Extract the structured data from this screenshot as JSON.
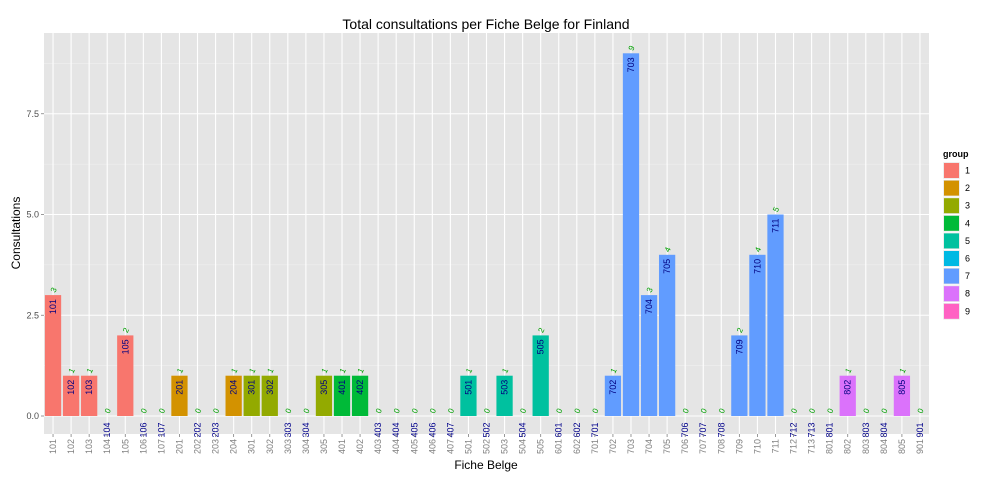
{
  "chart_data": {
    "type": "bar",
    "title": "Total consultations per Fiche Belge for Finland",
    "xlabel": "Fiche Belge",
    "ylabel": "Consultations",
    "ylim": [
      0,
      9.5
    ],
    "yticks": [
      0.0,
      2.5,
      5.0,
      7.5
    ],
    "ytick_labels": [
      "0.0",
      "2.5",
      "5.0",
      "7.5"
    ],
    "grid": true,
    "legend": {
      "title": "group",
      "placement": "right",
      "entries": [
        {
          "label": "1",
          "color": "#F8766D"
        },
        {
          "label": "2",
          "color": "#D39200"
        },
        {
          "label": "3",
          "color": "#93AA00"
        },
        {
          "label": "4",
          "color": "#00BA38"
        },
        {
          "label": "5",
          "color": "#00C19F"
        },
        {
          "label": "6",
          "color": "#00B9E3"
        },
        {
          "label": "7",
          "color": "#619CFF"
        },
        {
          "label": "8",
          "color": "#DB72FB"
        },
        {
          "label": "9",
          "color": "#FF61C3"
        }
      ]
    },
    "categories": [
      "101",
      "102",
      "103",
      "104",
      "105",
      "106",
      "107",
      "201",
      "202",
      "203",
      "204",
      "301",
      "302",
      "303",
      "304",
      "305",
      "401",
      "402",
      "403",
      "404",
      "405",
      "406",
      "407",
      "501",
      "502",
      "503",
      "504",
      "505",
      "601",
      "602",
      "701",
      "702",
      "703",
      "704",
      "705",
      "706",
      "707",
      "708",
      "709",
      "710",
      "711",
      "712",
      "713",
      "801",
      "802",
      "803",
      "804",
      "805",
      "901"
    ],
    "values": [
      3,
      1,
      1,
      0,
      2,
      0,
      0,
      1,
      0,
      0,
      1,
      1,
      1,
      0,
      0,
      1,
      1,
      1,
      0,
      0,
      0,
      0,
      0,
      1,
      0,
      1,
      0,
      2,
      0,
      0,
      0,
      1,
      9,
      3,
      4,
      0,
      0,
      0,
      2,
      4,
      5,
      0,
      0,
      0,
      1,
      0,
      0,
      1,
      0
    ],
    "groups": [
      1,
      1,
      1,
      1,
      1,
      1,
      1,
      2,
      2,
      2,
      2,
      3,
      3,
      3,
      3,
      3,
      4,
      4,
      4,
      4,
      4,
      4,
      4,
      5,
      5,
      5,
      5,
      5,
      6,
      6,
      7,
      7,
      7,
      7,
      7,
      7,
      7,
      7,
      7,
      7,
      7,
      7,
      7,
      8,
      8,
      8,
      8,
      8,
      9
    ],
    "label_colors": {
      "inside": "#000080",
      "zero": "#00008B",
      "count": "#00A000"
    }
  }
}
